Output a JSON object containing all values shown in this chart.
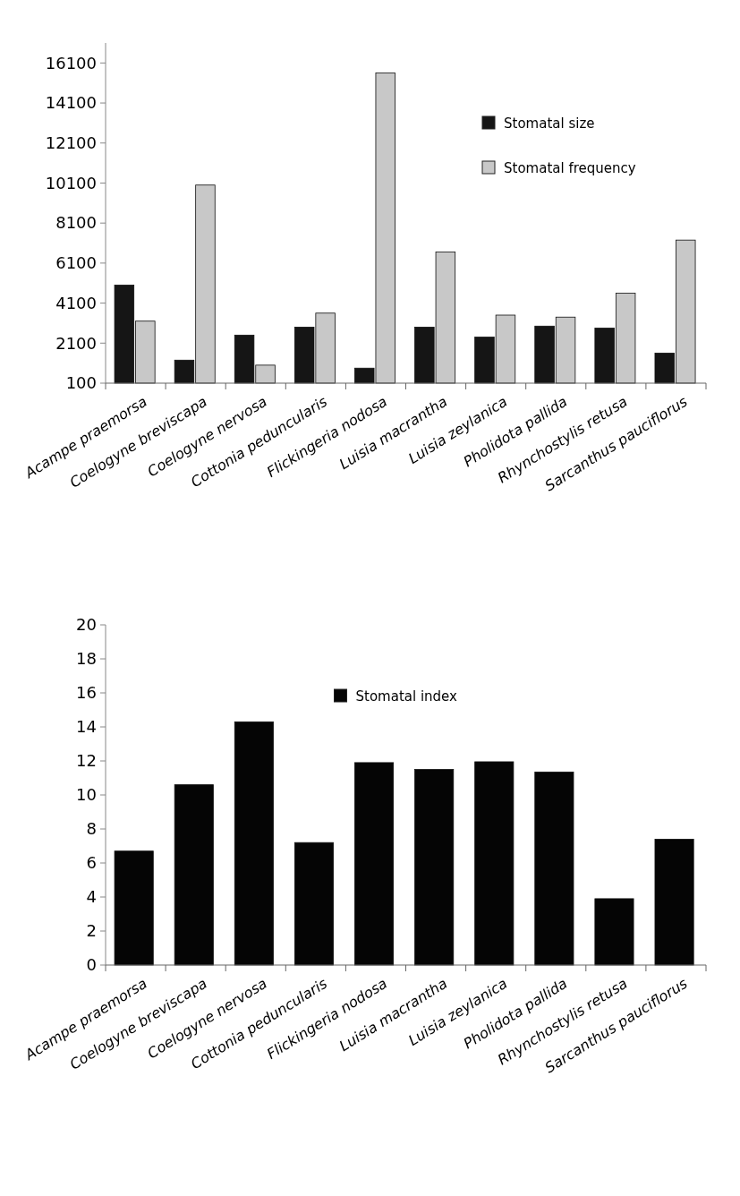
{
  "chart_data": [
    {
      "type": "bar",
      "categories": [
        "Acampe praemorsa",
        "Coelogyne breviscapa",
        "Coelogyne nervosa",
        "Cottonia peduncularis",
        "Flickingeria nodosa",
        "Luisia macrantha",
        "Luisia zeylanica",
        "Pholidota pallida",
        "Rhynchostylis retusa",
        "Sarcanthus pauciflorus"
      ],
      "series": [
        {
          "name": "Stomatal size",
          "color": "#151515",
          "values": [
            5000,
            1250,
            2500,
            2900,
            850,
            2900,
            2400,
            2950,
            2850,
            1600
          ]
        },
        {
          "name": "Stomatal frequency",
          "color": "#c8c8c8",
          "values": [
            3200,
            10000,
            1000,
            3600,
            15600,
            6650,
            3500,
            3400,
            4600,
            7250
          ]
        }
      ],
      "ylim": [
        100,
        17100
      ],
      "yticks": [
        100,
        2100,
        4100,
        6100,
        8100,
        10100,
        12100,
        14100,
        16100
      ],
      "legend": "top right"
    },
    {
      "type": "bar",
      "categories": [
        "Acampe praemorsa",
        "Coelogyne breviscapa",
        "Coelogyne nervosa",
        "Cottonia peduncularis",
        "Flickingeria nodosa",
        "Luisia macrantha",
        "Luisia zeylanica",
        "Pholidota pallida",
        "Rhynchostylis retusa",
        "Sarcanthus pauciflorus"
      ],
      "series": [
        {
          "name": "Stomatal index",
          "color": "#050505",
          "values": [
            6.7,
            10.6,
            14.3,
            7.2,
            11.9,
            11.5,
            11.95,
            11.35,
            3.9,
            7.4
          ]
        }
      ],
      "ylim": [
        0,
        20
      ],
      "yticks": [
        0,
        2,
        4,
        6,
        8,
        10,
        12,
        14,
        16,
        18,
        20
      ],
      "legend": "top"
    }
  ]
}
